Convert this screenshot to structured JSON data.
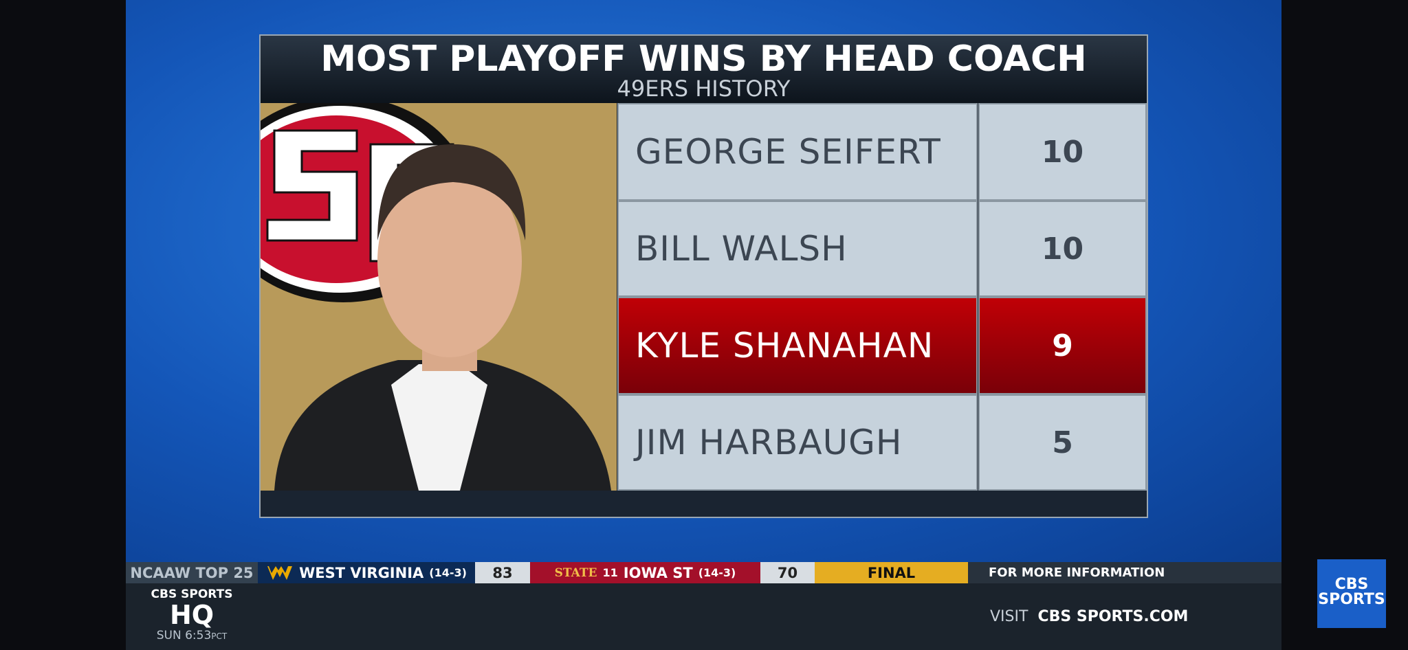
{
  "graphic": {
    "title": "MOST PLAYOFF WINS BY HEAD COACH",
    "subtitle": "49ERS HISTORY",
    "table": {
      "rows": [
        [
          "GEORGE SEIFERT",
          10
        ],
        [
          "BILL WALSH",
          10
        ],
        [
          "KYLE SHANAHAN",
          9
        ],
        [
          "JIM HARBAUGH",
          5
        ]
      ]
    }
  },
  "ticker": {
    "label": "NCAAW TOP 25",
    "team1": {
      "name": "WEST VIRGINIA",
      "record": "(14-3)",
      "score": 83
    },
    "team2": {
      "logo": "STATE",
      "rank": 11,
      "name": "IOWA ST",
      "record": "(14-3)",
      "score": 70
    },
    "status": "FINAL",
    "info": "FOR MORE INFORMATION",
    "visit": "VISIT",
    "site": "CBS SPORTS.COM"
  },
  "show": {
    "network": "CBS SPORTS",
    "name": "HQ",
    "time": "SUN 6:53",
    "zone": "PCT"
  },
  "corner_logo": {
    "line1": "CBS",
    "line2": "SPORTS"
  }
}
